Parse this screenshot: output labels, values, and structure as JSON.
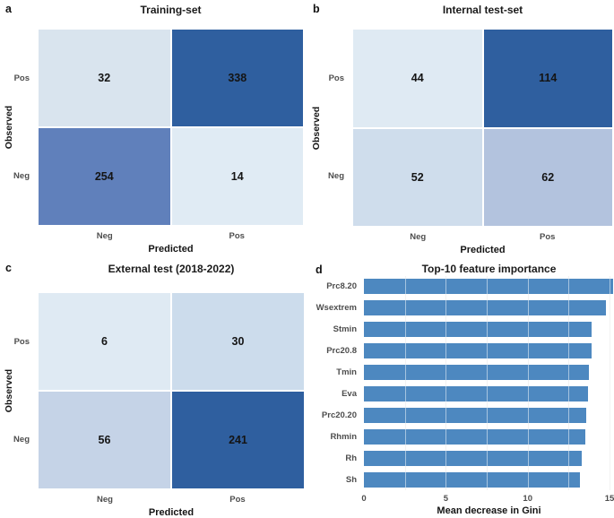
{
  "figure": {
    "background": "#ffffff",
    "tick_text_color": "#4d4d4d",
    "dark_cell_color": "#2f5f9f"
  },
  "chart_data": [
    {
      "type": "heatmap",
      "panel_label": "a",
      "title": "Training-set",
      "xlabel": "Predicted",
      "ylabel": "Observed",
      "x_categories": [
        "Neg",
        "Pos"
      ],
      "y_categories": [
        "Pos",
        "Neg"
      ],
      "cells": [
        {
          "row": "Pos",
          "col": "Neg",
          "value": 32,
          "color": "#d9e4ee"
        },
        {
          "row": "Pos",
          "col": "Pos",
          "value": 338,
          "color": "#2f5f9f"
        },
        {
          "row": "Neg",
          "col": "Neg",
          "value": 254,
          "color": "#6080bb"
        },
        {
          "row": "Neg",
          "col": "Pos",
          "value": 14,
          "color": "#e0ebf4"
        }
      ]
    },
    {
      "type": "heatmap",
      "panel_label": "b",
      "title": "Internal test-set",
      "xlabel": "Predicted",
      "ylabel": "Observed",
      "x_categories": [
        "Neg",
        "Pos"
      ],
      "y_categories": [
        "Pos",
        "Neg"
      ],
      "cells": [
        {
          "row": "Pos",
          "col": "Neg",
          "value": 44,
          "color": "#dfeaf3"
        },
        {
          "row": "Pos",
          "col": "Pos",
          "value": 114,
          "color": "#2f5f9f"
        },
        {
          "row": "Neg",
          "col": "Neg",
          "value": 52,
          "color": "#cfddec"
        },
        {
          "row": "Neg",
          "col": "Pos",
          "value": 62,
          "color": "#b3c3de"
        }
      ]
    },
    {
      "type": "heatmap",
      "panel_label": "c",
      "title": "External test (2018-2022)",
      "xlabel": "Predicted",
      "ylabel": "Observed",
      "x_categories": [
        "Neg",
        "Pos"
      ],
      "y_categories": [
        "Pos",
        "Neg"
      ],
      "cells": [
        {
          "row": "Pos",
          "col": "Neg",
          "value": 6,
          "color": "#dfeaf3"
        },
        {
          "row": "Pos",
          "col": "Pos",
          "value": 30,
          "color": "#ccdcec"
        },
        {
          "row": "Neg",
          "col": "Neg",
          "value": 56,
          "color": "#c5d3e7"
        },
        {
          "row": "Neg",
          "col": "Pos",
          "value": 241,
          "color": "#2f5f9f"
        }
      ]
    },
    {
      "type": "bar",
      "panel_label": "d",
      "title": "Top-10 feature importance",
      "orientation": "horizontal",
      "xlabel": "Mean decrease in Gini",
      "categories": [
        "Prc8.20",
        "Wsextrem",
        "Stmin",
        "Prc20.8",
        "Tmin",
        "Eva",
        "Prc20.20",
        "Rhmin",
        "Rh",
        "Sh"
      ],
      "values": [
        15.2,
        14.8,
        13.9,
        13.9,
        13.75,
        13.7,
        13.6,
        13.5,
        13.3,
        13.2
      ],
      "xlim": [
        0,
        15
      ],
      "xticks": [
        0,
        5,
        10,
        15
      ],
      "gridlines": [
        2.5,
        5,
        7.5,
        10,
        12.5,
        15
      ],
      "grid": true,
      "legend": "none",
      "bar_color": "#4d88c0"
    }
  ]
}
